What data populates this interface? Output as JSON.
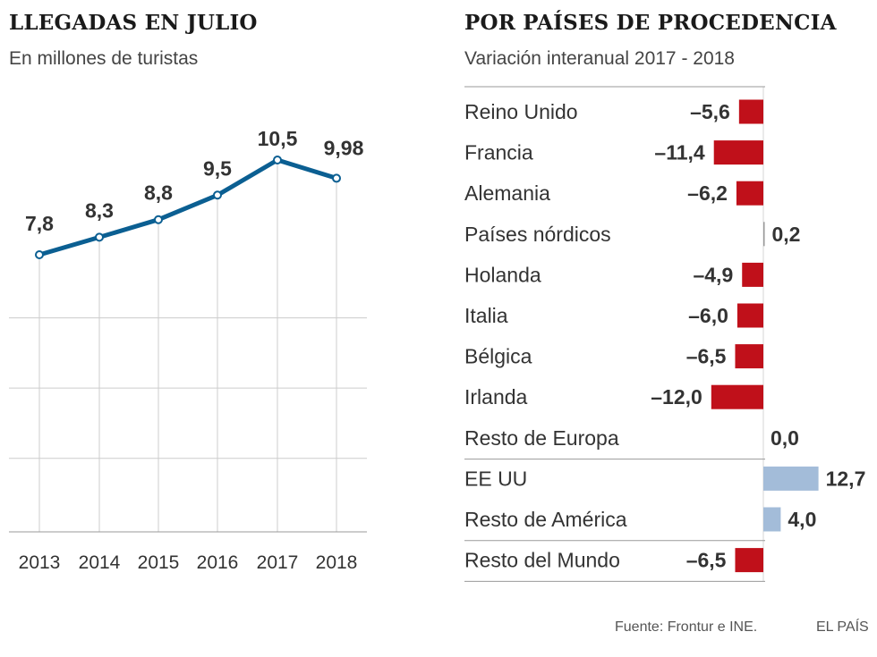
{
  "left": {
    "title": "LLEGADAS EN JULIO",
    "subtitle": "En millones de turistas"
  },
  "right": {
    "title": "POR PAÍSES DE PROCEDENCIA",
    "subtitle": "Variación interanual 2017 - 2018"
  },
  "footer": {
    "source": "Fuente: Frontur e INE.",
    "brand": "EL PAÍS"
  },
  "colors": {
    "line": "#0b5f92",
    "negative": "#c0101a",
    "positive": "#a3bcd9",
    "grid": "#cccccc"
  },
  "chart_data": [
    {
      "type": "line",
      "title": "LLEGADAS EN JULIO",
      "subtitle": "En millones de turistas",
      "x": [
        "2013",
        "2014",
        "2015",
        "2016",
        "2017",
        "2018"
      ],
      "values": [
        7.8,
        8.3,
        8.8,
        9.5,
        10.5,
        9.98
      ],
      "labels": [
        "7,8",
        "8,3",
        "8,8",
        "9,5",
        "10,5",
        "9,98"
      ],
      "ylim": [
        0,
        14
      ],
      "grid": true
    },
    {
      "type": "bar",
      "orientation": "horizontal",
      "title": "POR PAÍSES DE PROCEDENCIA",
      "subtitle": "Variación interanual 2017 - 2018",
      "categories": [
        "Reino Unido",
        "Francia",
        "Alemania",
        "Países nórdicos",
        "Holanda",
        "Italia",
        "Bélgica",
        "Irlanda",
        "Resto de Europa",
        "EE UU",
        "Resto de América",
        "Resto del Mundo"
      ],
      "values": [
        -5.6,
        -11.4,
        -6.2,
        0.2,
        -4.9,
        -6.0,
        -6.5,
        -12.0,
        0.0,
        12.7,
        4.0,
        -6.5
      ],
      "labels": [
        "–5,6",
        "–11,4",
        "–6,2",
        "0,2",
        "–4,9",
        "–6,0",
        "–6,5",
        "–12,0",
        "0,0",
        "12,7",
        "4,0",
        "–6,5"
      ],
      "groups": [
        [
          "Reino Unido",
          "Francia",
          "Alemania",
          "Países nórdicos",
          "Holanda",
          "Italia",
          "Bélgica",
          "Irlanda",
          "Resto de Europa"
        ],
        [
          "EE UU",
          "Resto de América"
        ],
        [
          "Resto del Mundo"
        ]
      ]
    }
  ]
}
